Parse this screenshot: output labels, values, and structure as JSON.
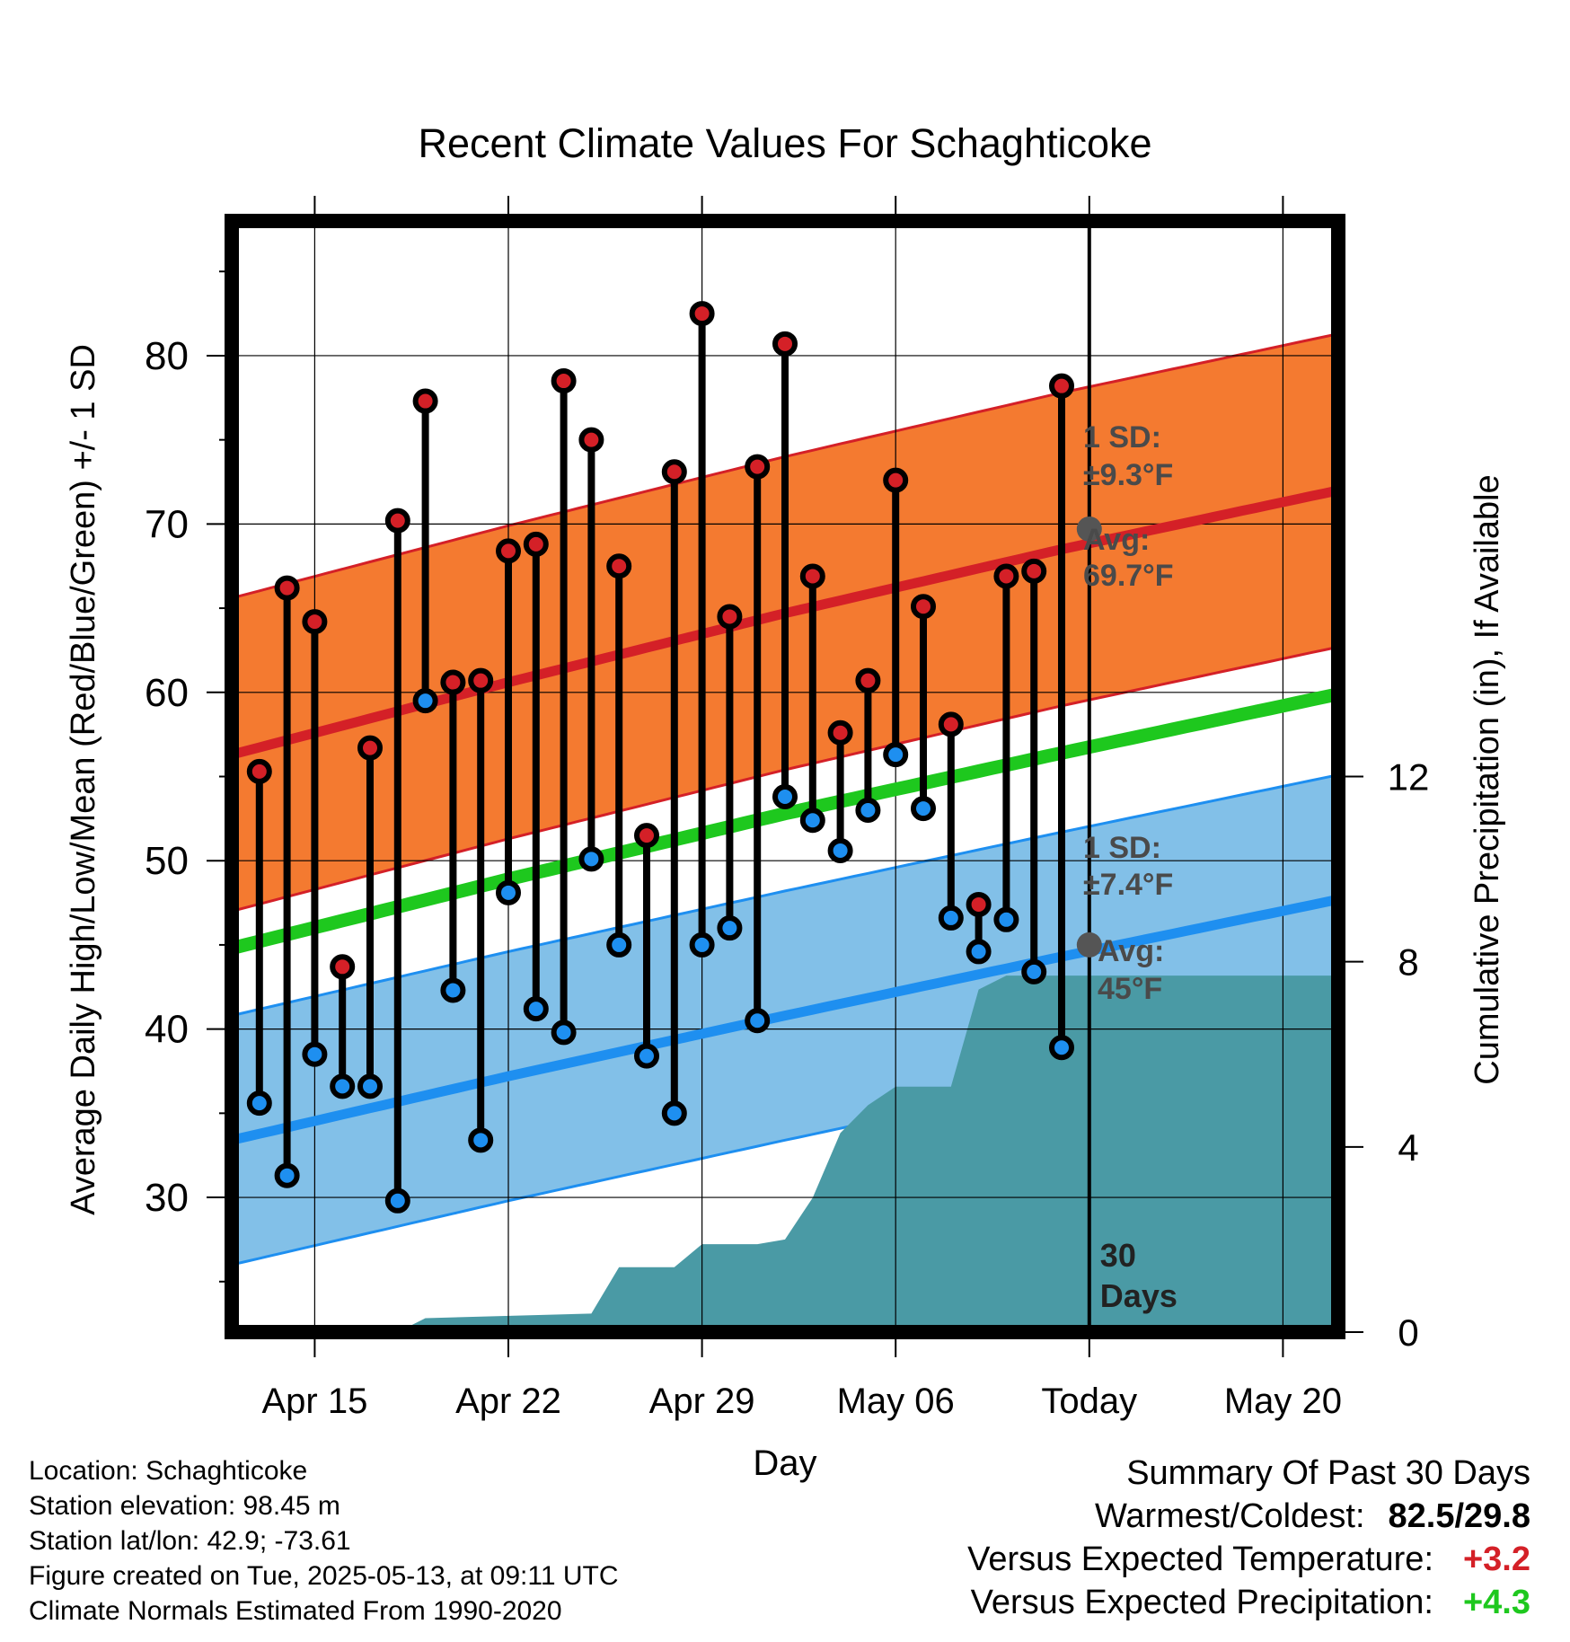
{
  "chart_data": {
    "type": "line",
    "title": "Recent Climate Values For Schaghticoke",
    "xlabel": "Day",
    "ylabel": "Average Daily High/Low/Mean (Red/Blue/Green) +/- 1 SD",
    "y2label": "Cumulative Precipitation (in), If Available",
    "x_range": [
      "2025-04-12",
      "2025-05-22"
    ],
    "ylim": [
      22,
      88
    ],
    "y2lim": [
      0,
      24
    ],
    "grid": true,
    "x_ticks": [
      {
        "date": "2025-04-15",
        "label": "Apr 15"
      },
      {
        "date": "2025-04-22",
        "label": "Apr 22"
      },
      {
        "date": "2025-04-29",
        "label": "Apr 29"
      },
      {
        "date": "2025-05-06",
        "label": "May 06"
      },
      {
        "date": "2025-05-13",
        "label": "Today"
      },
      {
        "date": "2025-05-20",
        "label": "May 20"
      }
    ],
    "y_ticks": [
      30,
      40,
      50,
      60,
      70,
      80
    ],
    "y2_ticks": [
      0,
      4,
      8,
      12
    ],
    "today": "2025-05-13",
    "today_label": "30 Days",
    "normals": {
      "dates": [
        "2025-04-12",
        "2025-04-22",
        "2025-05-02",
        "2025-05-12",
        "2025-05-22"
      ],
      "high_avg": [
        56.3,
        60.6,
        64.7,
        68.5,
        72.0
      ],
      "high_sd": 9.3,
      "low_avg": [
        33.4,
        37.2,
        40.8,
        44.3,
        47.7
      ],
      "low_sd": 7.4,
      "mean_avg": [
        44.8,
        48.9,
        52.8,
        56.4,
        59.9
      ]
    },
    "today_high": {
      "value": 69.7,
      "sd_label": "1 SD:",
      "sd_text": "±9.3°F",
      "avg_label": "Avg:",
      "avg_text": "69.7°F"
    },
    "today_low": {
      "value": 45,
      "sd_label": "1 SD:",
      "sd_text": "±7.4°F",
      "avg_label": "Avg:",
      "avg_text": "45°F"
    },
    "daily": {
      "dates": [
        "2025-04-13",
        "2025-04-14",
        "2025-04-15",
        "2025-04-16",
        "2025-04-17",
        "2025-04-18",
        "2025-04-19",
        "2025-04-20",
        "2025-04-21",
        "2025-04-22",
        "2025-04-23",
        "2025-04-24",
        "2025-04-25",
        "2025-04-26",
        "2025-04-27",
        "2025-04-28",
        "2025-04-29",
        "2025-04-30",
        "2025-05-01",
        "2025-05-02",
        "2025-05-03",
        "2025-05-04",
        "2025-05-05",
        "2025-05-06",
        "2025-05-07",
        "2025-05-08",
        "2025-05-09",
        "2025-05-10",
        "2025-05-11",
        "2025-05-12"
      ],
      "high": [
        55.3,
        66.2,
        64.2,
        43.7,
        56.7,
        70.2,
        77.3,
        60.6,
        60.7,
        68.4,
        68.8,
        78.5,
        75.0,
        67.5,
        51.5,
        73.1,
        82.5,
        64.5,
        73.4,
        80.7,
        66.9,
        57.6,
        60.7,
        72.6,
        65.1,
        58.1,
        47.4,
        66.9,
        67.2,
        78.2
      ],
      "low": [
        35.6,
        31.3,
        38.5,
        36.6,
        36.6,
        29.8,
        59.5,
        42.3,
        33.4,
        48.1,
        41.2,
        39.8,
        50.1,
        45.0,
        38.4,
        35.0,
        45.0,
        46.0,
        40.5,
        53.8,
        52.4,
        50.6,
        53.0,
        56.3,
        53.1,
        46.6,
        44.6,
        46.5,
        43.4,
        38.9
      ]
    },
    "precip": {
      "dates": [
        "2025-04-12",
        "2025-04-17",
        "2025-04-18",
        "2025-04-19",
        "2025-04-25",
        "2025-04-26",
        "2025-04-27",
        "2025-04-28",
        "2025-04-29",
        "2025-05-01",
        "2025-05-02",
        "2025-05-03",
        "2025-05-04",
        "2025-05-05",
        "2025-05-06",
        "2025-05-07",
        "2025-05-08",
        "2025-05-09",
        "2025-05-10",
        "2025-05-11",
        "2025-05-22"
      ],
      "values": [
        0,
        0,
        0,
        0.3,
        0.4,
        1.4,
        1.4,
        1.4,
        1.9,
        1.9,
        2.0,
        2.9,
        4.3,
        4.9,
        5.3,
        5.3,
        5.3,
        7.4,
        7.7,
        7.7,
        7.7
      ]
    },
    "colors": {
      "high_band": "#f47a30",
      "high_line": "#d42027",
      "low_band": "#82c0e8",
      "low_line": "#1e8ff0",
      "mean_line": "#1ec81e",
      "precip": "#4a9aa5",
      "high_marker": "#d42027",
      "low_marker": "#1e8ff0",
      "today_marker": "#555555"
    }
  },
  "footer": {
    "location": "Location: Schaghticoke",
    "elevation": "Station elevation: 98.45 m",
    "latlon": "Station lat/lon: 42.9; -73.61",
    "created": "Figure created on Tue, 2025-05-13, at 09:11 UTC",
    "normals": "Climate Normals Estimated From 1990-2020"
  },
  "summary": {
    "title": "Summary Of Past 30 Days",
    "warmest_coldest_label": "Warmest/Coldest:",
    "warmest_coldest_value": "82.5/29.8",
    "temp_label": "Versus Expected Temperature:",
    "temp_value": "+3.2",
    "temp_color": "#d42027",
    "precip_label": "Versus Expected Precipitation:",
    "precip_value": "+4.3",
    "precip_color": "#1ec81e"
  }
}
